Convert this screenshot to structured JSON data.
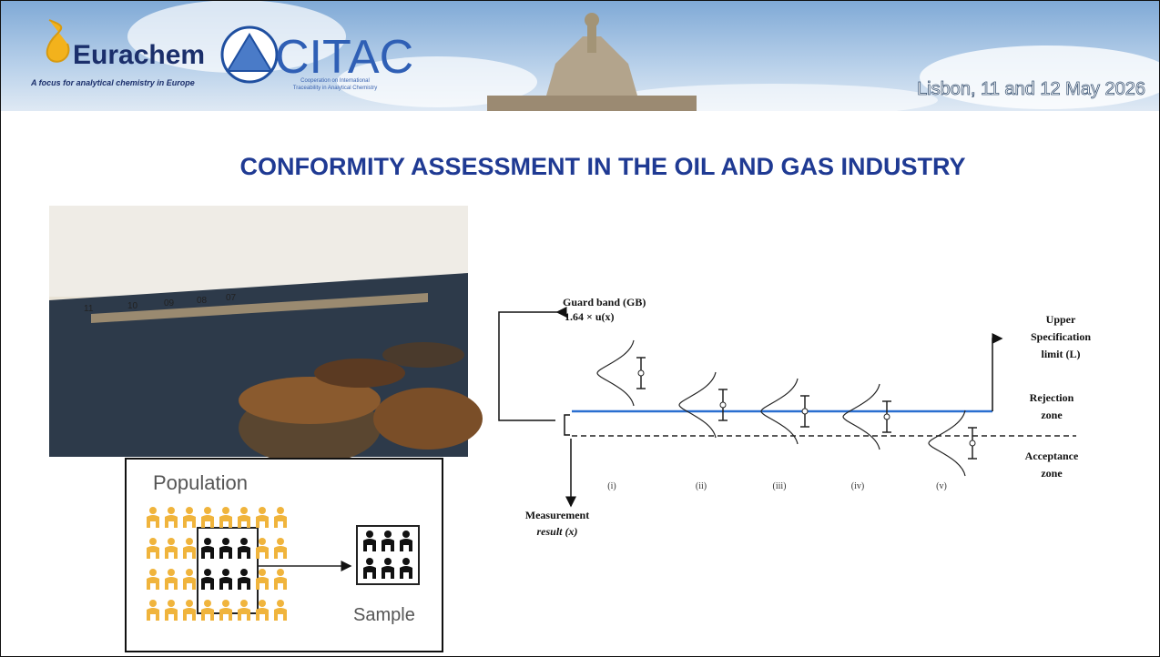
{
  "header": {
    "eurachem": {
      "name": "Eurachem",
      "tagline": "A focus for analytical chemistry in Europe"
    },
    "citac": {
      "name": "CITAC",
      "tagline": [
        "Cooperation on International",
        "Traceability in Analytical Chemistry"
      ]
    },
    "event": "Lisbon, 11 and 12 May 2026"
  },
  "title": "CONFORMITY ASSESSMENT IN THE OIL AND GAS INDUSTRY",
  "photo": {
    "labels": [
      "11",
      "10",
      "09",
      "08",
      "07"
    ]
  },
  "sampling": {
    "population": "Population",
    "sample": "Sample"
  },
  "diagram": {
    "guard_band": "Guard band (GB)",
    "guard_formula": "1.64 × u(x)",
    "upper_limit": [
      "Upper",
      "Specification",
      "limit (L)"
    ],
    "rejection": [
      "Rejection",
      "zone"
    ],
    "acceptance": [
      "Acceptance",
      "zone"
    ],
    "measurement": [
      "Measurement",
      "result (x)"
    ],
    "cases": [
      "(i)",
      "(ii)",
      "(iii)",
      "(iv)",
      "(v)"
    ]
  }
}
